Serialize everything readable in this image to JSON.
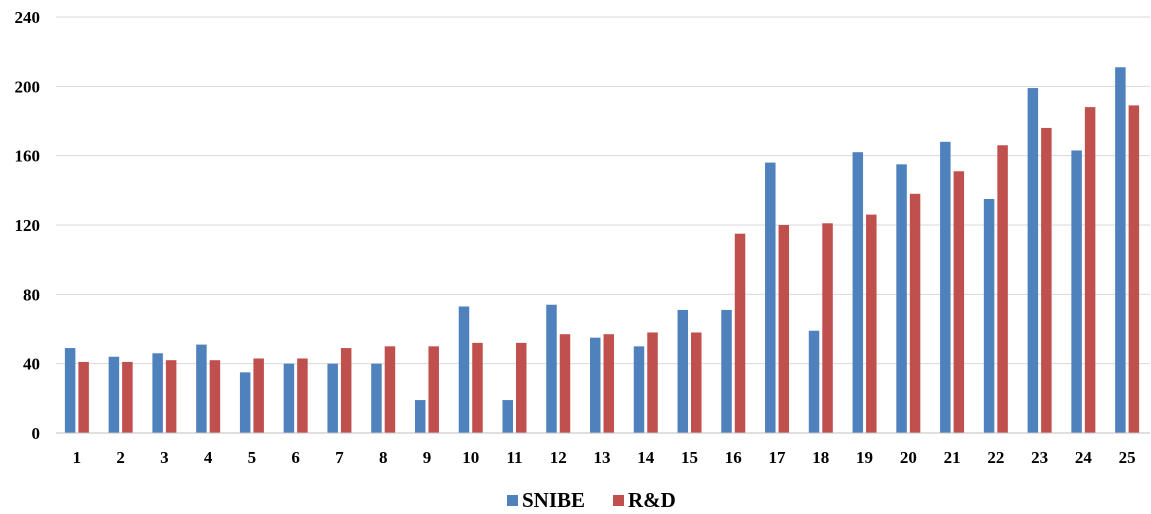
{
  "chart_data": {
    "type": "bar",
    "categories": [
      "1",
      "2",
      "3",
      "4",
      "5",
      "6",
      "7",
      "8",
      "9",
      "10",
      "11",
      "12",
      "13",
      "14",
      "15",
      "16",
      "17",
      "18",
      "19",
      "20",
      "21",
      "22",
      "23",
      "24",
      "25"
    ],
    "series": [
      {
        "name": "SNIBE",
        "color": "#4f81bd",
        "values": [
          49,
          44,
          46,
          51,
          35,
          40,
          40,
          40,
          19,
          73,
          19,
          74,
          55,
          50,
          71,
          71,
          156,
          59,
          162,
          155,
          168,
          135,
          199,
          163,
          211
        ]
      },
      {
        "name": "R&D",
        "color": "#c0504d",
        "values": [
          41,
          41,
          42,
          42,
          43,
          43,
          49,
          50,
          50,
          52,
          52,
          57,
          57,
          58,
          58,
          115,
          120,
          121,
          126,
          138,
          151,
          166,
          176,
          188,
          189
        ]
      }
    ],
    "ylim": [
      0,
      240
    ],
    "yticks": [
      0,
      40,
      80,
      120,
      160,
      200,
      240
    ],
    "grid": true,
    "legend": "bottom-center"
  }
}
